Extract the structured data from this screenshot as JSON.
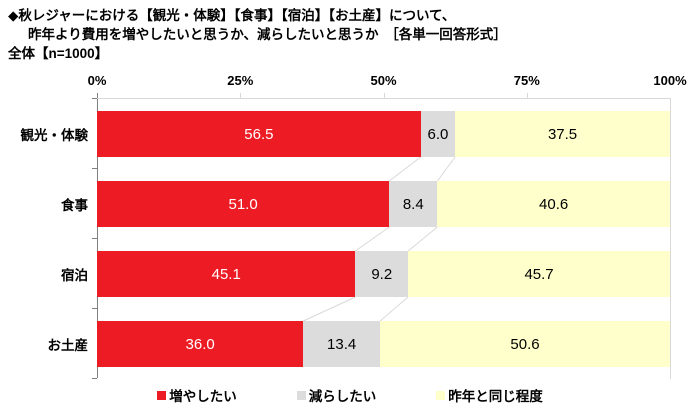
{
  "title": {
    "line1": "◆秋レジャーにおける【観光・体験】【食事】【宿泊】【お土産】について、",
    "line2": "昨年より費用を増やしたいと思うか、減らしたいと思うか　［各単一回答形式］",
    "line3": "全体【n=1000】"
  },
  "chart_data": {
    "type": "bar",
    "orientation": "horizontal-stacked",
    "title": "秋レジャーにおける費用を増やしたいか減らしたいか",
    "categories": [
      "観光・体験",
      "食事",
      "宿泊",
      "お土産"
    ],
    "series": [
      {
        "name": "増やしたい",
        "color": "#ED1C24",
        "label_color": "#FFFFFF",
        "values": [
          56.5,
          51.0,
          45.1,
          36.0
        ]
      },
      {
        "name": "減らしたい",
        "color": "#DCDCDC",
        "label_color": "#000000",
        "values": [
          6.0,
          8.4,
          9.2,
          13.4
        ]
      },
      {
        "name": "昨年と同じ程度",
        "color": "#FFFFCC",
        "label_color": "#000000",
        "values": [
          37.5,
          40.6,
          45.7,
          50.6
        ]
      }
    ],
    "x_axis": {
      "min": 0,
      "max": 100,
      "ticks": [
        "0%",
        "25%",
        "50%",
        "75%",
        "100%"
      ]
    },
    "legend_position": "bottom",
    "grid": false,
    "connector_line_color": "#D9D9D9",
    "axis_line_color": "#808080",
    "plot_border_color": "#D9D9D9",
    "value_decimals": 1
  }
}
